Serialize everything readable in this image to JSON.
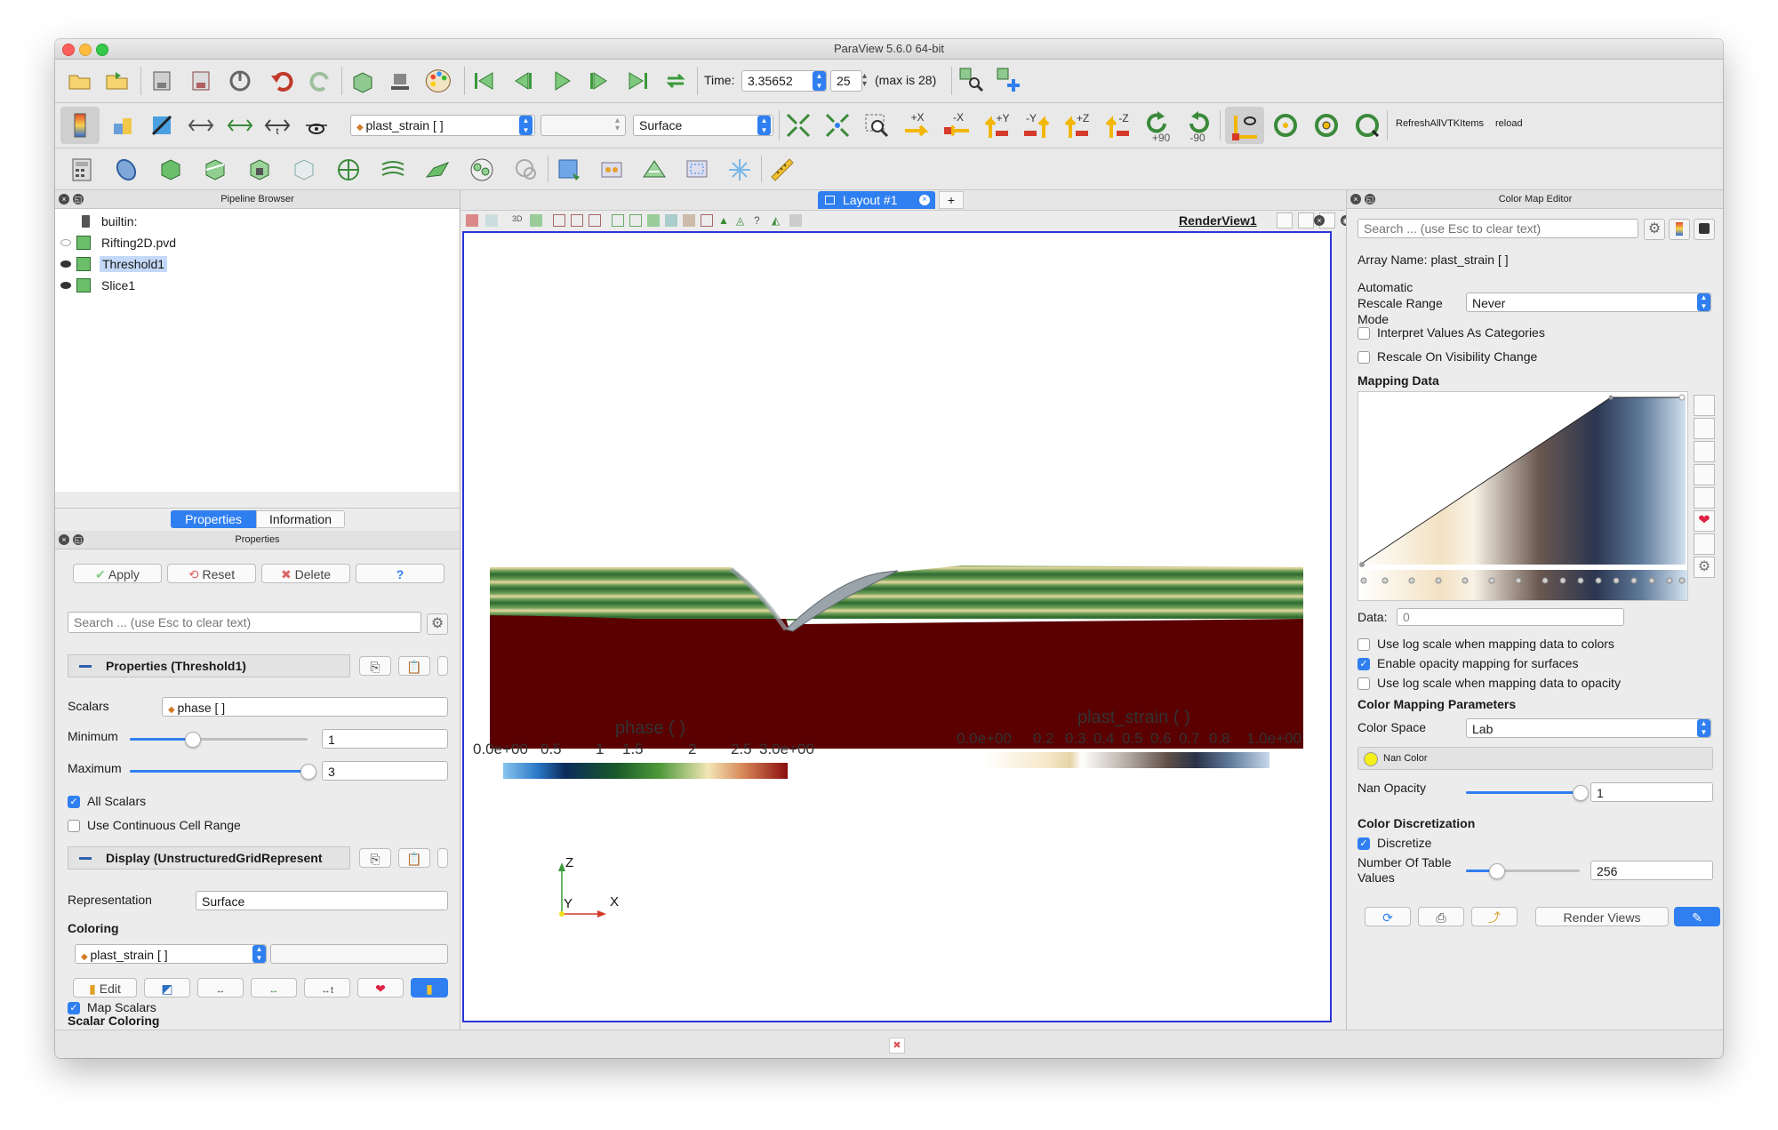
{
  "window": {
    "title": "ParaView 5.6.0 64-bit"
  },
  "colors": {
    "accent": "#2f7ff1",
    "selection": "#c4d9f7",
    "render_border": "#2a35d8",
    "soil": "#5a0000"
  },
  "toolbar1": {
    "icons": [
      "open-folder-icon",
      "open-recent-icon",
      "save-data-icon",
      "save-state-icon",
      "connect-icon",
      "undo-icon",
      "redo-icon",
      "camera-icon",
      "screenshot-icon",
      "palette-icon",
      "first-frame-icon",
      "previous-frame-icon",
      "play-icon",
      "next-frame-icon",
      "last-frame-icon",
      "loop-icon",
      "find-data-icon",
      "add-data-icon"
    ],
    "time_label": "Time:",
    "time_value": "3.35652",
    "timestep_value": "25",
    "max_label": "(max is 28)"
  },
  "toolbar2": {
    "array_select": "plast_strain [ ]",
    "component_select": "",
    "representation_select": "Surface",
    "camera_labels": [
      "+X",
      "-X",
      "+Y",
      "-Y",
      "+Z",
      "-Z"
    ],
    "rotate_labels": [
      "+90",
      "-90"
    ],
    "custom_buttons": [
      "RefreshAllVTKItems",
      "reload"
    ]
  },
  "pipeline_browser": {
    "title": "Pipeline Browser",
    "items": [
      {
        "label": "builtin:",
        "icon": "server-icon",
        "selected": false
      },
      {
        "label": "Rifting2D.pvd",
        "icon": "data-source-icon",
        "selected": false
      },
      {
        "label": "Threshold1",
        "icon": "filter-icon",
        "selected": true
      },
      {
        "label": "Slice1",
        "icon": "filter-icon",
        "selected": false
      }
    ]
  },
  "bottom_tabs": {
    "properties": "Properties",
    "information": "Information"
  },
  "properties": {
    "title": "Properties",
    "apply": "Apply",
    "reset": "Reset",
    "delete": "Delete",
    "help": "?",
    "search_placeholder": "Search ... (use Esc to clear text)",
    "section_threshold": "Properties (Threshold1)",
    "scalars_label": "Scalars",
    "scalars_value": "phase [ ]",
    "minimum_label": "Minimum",
    "minimum_value": "1",
    "minimum_fraction": 0.35,
    "maximum_label": "Maximum",
    "maximum_value": "3",
    "maximum_fraction": 1.0,
    "all_scalars": "All Scalars",
    "continuous": "Use Continuous Cell Range",
    "section_display": "Display (UnstructuredGridRepresent",
    "representation_label": "Representation",
    "representation_value": "Surface",
    "coloring_title": "Coloring",
    "coloring_value": "plast_strain [ ]",
    "edit": "Edit",
    "scalar_coloring_title": "Scalar Coloring",
    "map_scalars": "Map Scalars"
  },
  "layout": {
    "tab": "Layout #1",
    "add": "+",
    "view_name": "RenderView1"
  },
  "render": {
    "legend_phase": {
      "title": "phase ( )",
      "ticks": [
        "0.0e+00",
        "0.5",
        "1",
        "1.5",
        "2",
        "2.5",
        "3.0e+00"
      ]
    },
    "legend_strain": {
      "title": "plast_strain ( )",
      "ticks": [
        "0.0e+00",
        "0.2",
        "0.3",
        "0.4",
        "0.5",
        "0.6",
        "0.7",
        "0.8",
        "1.0e+00"
      ]
    },
    "axes": {
      "z": "Z",
      "y": "Y",
      "x": "X"
    }
  },
  "color_map_editor": {
    "title": "Color Map Editor",
    "search_placeholder": "Search ... (use Esc to clear text)",
    "array_name": "Array Name: plast_strain [ ]",
    "auto_rescale_label": "Automatic Rescale Range Mode",
    "auto_rescale_value": "Never",
    "interpret_categories": "Interpret Values As Categories",
    "rescale_visibility": "Rescale On Visibility Change",
    "mapping_data": "Mapping Data",
    "data_label": "Data:",
    "data_value": "0",
    "log_scale": "Use log scale when mapping data to colors",
    "opacity_mapping": "Enable opacity mapping for surfaces",
    "log_opacity": "Use log scale when mapping data to opacity",
    "cmp_title": "Color Mapping Parameters",
    "color_space_label": "Color Space",
    "color_space_value": "Lab",
    "nan_color": "Nan Color",
    "nan_opacity_label": "Nan Opacity",
    "nan_opacity_value": "1",
    "nan_opacity_fraction": 1.0,
    "discretization_title": "Color Discretization",
    "discretize": "Discretize",
    "table_values_label": "Number Of Table Values",
    "table_values_value": "256",
    "render_views": "Render Views"
  }
}
